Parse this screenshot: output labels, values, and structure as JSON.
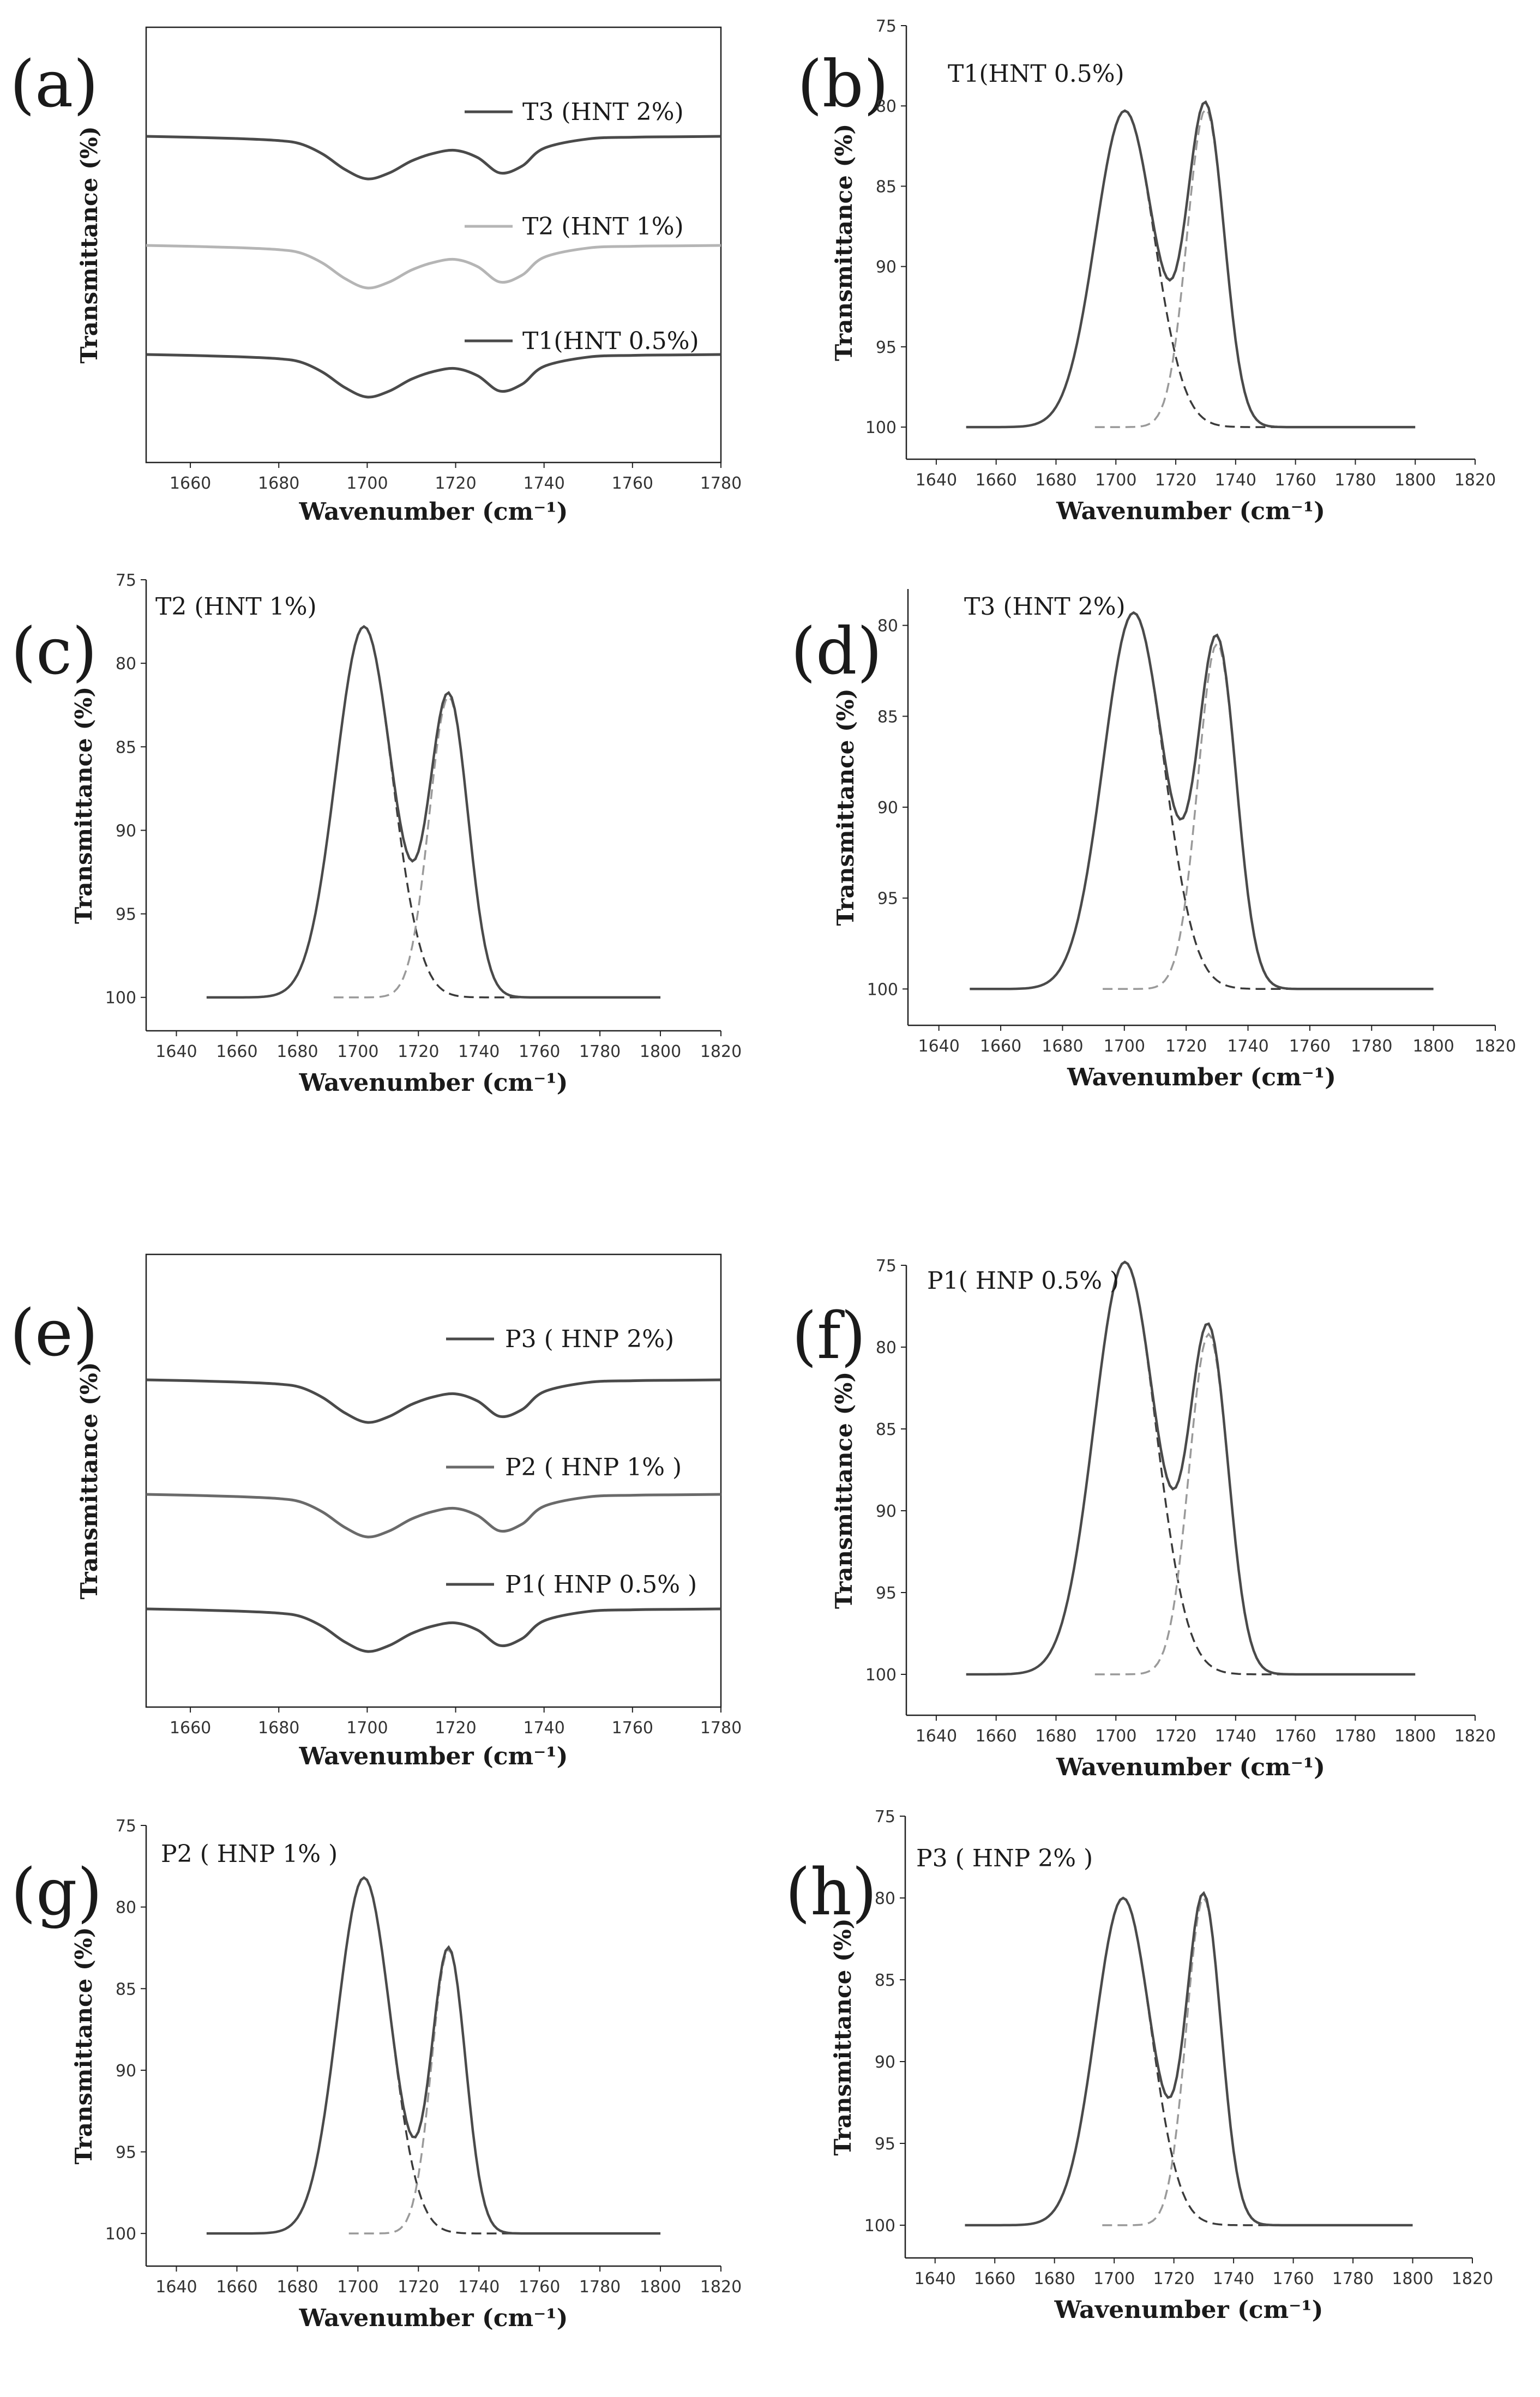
{
  "figure": {
    "colors": {
      "dark": "#4a4a4a",
      "medium": "#8a8a8a",
      "light": "#b5b5b5",
      "fit": "#3a3a3a",
      "background": "#ffffff"
    }
  },
  "chart_data": [
    {
      "panel": "(a)",
      "type": "line",
      "style": "stacked",
      "xlabel": "Wavenumber (cm⁻¹)",
      "ylabel": "Transmittance (%)",
      "xlim": [
        1650,
        1780
      ],
      "xticks": [
        "1660",
        "1680",
        "1700",
        "1720",
        "1740",
        "1760",
        "1780"
      ],
      "series": [
        {
          "name": "T3 (HNT 2%)",
          "color": "#4a4a4a",
          "offset": 0.2,
          "x": [
            1650,
            1660,
            1670,
            1680,
            1685,
            1690,
            1695,
            1700,
            1705,
            1710,
            1715,
            1720,
            1725,
            1730,
            1735,
            1740,
            1750,
            1760,
            1770,
            1780
          ],
          "y": [
            0.0,
            0.02,
            0.05,
            0.1,
            0.18,
            0.42,
            0.78,
            1.0,
            0.86,
            0.58,
            0.4,
            0.33,
            0.5,
            0.86,
            0.7,
            0.28,
            0.06,
            0.02,
            0.01,
            0.0
          ]
        },
        {
          "name": "T2 (HNT 1%)",
          "color": "#b5b5b5",
          "offset": 2.2,
          "x": [
            1650,
            1660,
            1670,
            1680,
            1685,
            1690,
            1695,
            1700,
            1705,
            1710,
            1715,
            1720,
            1725,
            1730,
            1735,
            1740,
            1750,
            1760,
            1770,
            1780
          ],
          "y": [
            0.0,
            0.02,
            0.05,
            0.1,
            0.18,
            0.42,
            0.78,
            1.0,
            0.86,
            0.58,
            0.4,
            0.33,
            0.5,
            0.86,
            0.7,
            0.28,
            0.06,
            0.02,
            0.01,
            0.0
          ]
        },
        {
          "name": "T1(HNT 0.5%)",
          "color": "#4a4a4a",
          "offset": 4.2,
          "x": [
            1650,
            1660,
            1670,
            1680,
            1685,
            1690,
            1695,
            1700,
            1705,
            1710,
            1715,
            1720,
            1725,
            1730,
            1735,
            1740,
            1750,
            1760,
            1770,
            1780
          ],
          "y": [
            0.0,
            0.02,
            0.05,
            0.1,
            0.18,
            0.42,
            0.78,
            1.0,
            0.86,
            0.58,
            0.4,
            0.33,
            0.5,
            0.86,
            0.7,
            0.28,
            0.06,
            0.02,
            0.01,
            0.0
          ]
        }
      ]
    },
    {
      "panel": "(b)",
      "type": "line",
      "style": "fit",
      "label": "T1(HNT 0.5%)",
      "xlabel": "Wavenumber (cm⁻¹)",
      "ylabel": "Transmittance (%)",
      "xlim": [
        1630,
        1820
      ],
      "ylim": [
        75,
        102
      ],
      "xticks": [
        "1640",
        "1660",
        "1680",
        "1700",
        "1720",
        "1740",
        "1760",
        "1780",
        "1800",
        "1820"
      ],
      "yticks": [
        "75",
        "80",
        "85",
        "90",
        "95",
        "100"
      ],
      "x_start": 1650,
      "x_end": 1800,
      "peaks": [
        {
          "center": 1703,
          "min_transmittance": 80.3,
          "width": 9.8,
          "color": "#3a3a3a"
        },
        {
          "center": 1730,
          "min_transmittance": 80.2,
          "width": 6.2,
          "color": "#9a9a9a"
        }
      ]
    },
    {
      "panel": "(c)",
      "type": "line",
      "style": "fit",
      "label": "T2 (HNT 1%)",
      "xlabel": "Wavenumber (cm⁻¹)",
      "ylabel": "Transmittance (%)",
      "xlim": [
        1630,
        1820
      ],
      "ylim": [
        75,
        102
      ],
      "xticks": [
        "1640",
        "1660",
        "1680",
        "1700",
        "1720",
        "1740",
        "1760",
        "1780",
        "1800",
        "1820"
      ],
      "yticks": [
        "75",
        "80",
        "85",
        "90",
        "95",
        "100"
      ],
      "x_start": 1650,
      "x_end": 1800,
      "peaks": [
        {
          "center": 1702,
          "min_transmittance": 77.8,
          "width": 9.3,
          "color": "#3a3a3a"
        },
        {
          "center": 1730,
          "min_transmittance": 82.0,
          "width": 6.4,
          "color": "#9a9a9a"
        }
      ]
    },
    {
      "panel": "(d)",
      "type": "line",
      "style": "fit",
      "label": "T3 (HNT 2%)",
      "xlabel": "Wavenumber (cm⁻¹)",
      "ylabel": "Transmittance (%)",
      "xlim": [
        1630,
        1820
      ],
      "ylim": [
        78,
        102
      ],
      "xticks": [
        "1640",
        "1660",
        "1680",
        "1700",
        "1720",
        "1740",
        "1760",
        "1780",
        "1800",
        "1820"
      ],
      "yticks": [
        "80",
        "85",
        "90",
        "95",
        "100"
      ],
      "x_start": 1650,
      "x_end": 1800,
      "peaks": [
        {
          "center": 1703,
          "min_transmittance": 79.3,
          "width": 9.8,
          "color": "#3a3a3a"
        },
        {
          "center": 1730,
          "min_transmittance": 81.0,
          "width": 6.2,
          "color": "#9a9a9a"
        }
      ]
    },
    {
      "panel": "(e)",
      "type": "line",
      "style": "stacked",
      "xlabel": "Wavenumber (cm⁻¹)",
      "ylabel": "Transmittance (%)",
      "xlim": [
        1650,
        1780
      ],
      "xticks": [
        "1660",
        "1680",
        "1700",
        "1720",
        "1740",
        "1760",
        "1780"
      ],
      "series": [
        {
          "name": "P3 ( HNP 2%)",
          "color": "#4a4a4a",
          "offset": 0.2,
          "x": [
            1650,
            1660,
            1670,
            1680,
            1685,
            1690,
            1695,
            1700,
            1705,
            1710,
            1715,
            1720,
            1725,
            1730,
            1735,
            1740,
            1750,
            1760,
            1770,
            1780
          ],
          "y": [
            0.0,
            0.02,
            0.05,
            0.1,
            0.18,
            0.42,
            0.78,
            1.0,
            0.86,
            0.58,
            0.4,
            0.33,
            0.5,
            0.86,
            0.7,
            0.28,
            0.06,
            0.02,
            0.01,
            0.0
          ]
        },
        {
          "name": "P2 ( HNP 1% )",
          "color": "#6a6a6a",
          "offset": 2.2,
          "x": [
            1650,
            1660,
            1670,
            1680,
            1685,
            1690,
            1695,
            1700,
            1705,
            1710,
            1715,
            1720,
            1725,
            1730,
            1735,
            1740,
            1750,
            1760,
            1770,
            1780
          ],
          "y": [
            0.0,
            0.02,
            0.05,
            0.1,
            0.18,
            0.42,
            0.78,
            1.0,
            0.86,
            0.58,
            0.4,
            0.33,
            0.5,
            0.86,
            0.7,
            0.28,
            0.06,
            0.02,
            0.01,
            0.0
          ]
        },
        {
          "name": "P1( HNP 0.5% )",
          "color": "#4a4a4a",
          "offset": 4.2,
          "x": [
            1650,
            1660,
            1670,
            1680,
            1685,
            1690,
            1695,
            1700,
            1705,
            1710,
            1715,
            1720,
            1725,
            1730,
            1735,
            1740,
            1750,
            1760,
            1770,
            1780
          ],
          "y": [
            0.0,
            0.02,
            0.05,
            0.1,
            0.18,
            0.42,
            0.78,
            1.0,
            0.86,
            0.58,
            0.4,
            0.33,
            0.5,
            0.86,
            0.7,
            0.28,
            0.06,
            0.02,
            0.01,
            0.0
          ]
        }
      ]
    },
    {
      "panel": "(f)",
      "type": "line",
      "style": "fit",
      "label": "P1( HNP 0.5% )",
      "xlabel": "Wavenumber (cm⁻¹)",
      "ylabel": "Transmittance (%)",
      "xlim": [
        1630,
        1820
      ],
      "ylim": [
        75,
        102.5
      ],
      "xticks": [
        "1640",
        "1660",
        "1680",
        "1700",
        "1720",
        "1740",
        "1760",
        "1780",
        "1800",
        "1820"
      ],
      "yticks": [
        "75",
        "80",
        "85",
        "90",
        "95",
        "100"
      ],
      "x_start": 1650,
      "x_end": 1800,
      "peaks": [
        {
          "center": 1703,
          "min_transmittance": 74.8,
          "width": 10.3,
          "color": "#3a3a3a"
        },
        {
          "center": 1731,
          "min_transmittance": 79.2,
          "width": 6.5,
          "color": "#9a9a9a"
        }
      ]
    },
    {
      "panel": "(g)",
      "type": "line",
      "style": "fit",
      "label": "P2 ( HNP 1% )",
      "xlabel": "Wavenumber (cm⁻¹)",
      "ylabel": "Transmittance (%)",
      "xlim": [
        1630,
        1820
      ],
      "ylim": [
        75,
        102
      ],
      "xticks": [
        "1640",
        "1660",
        "1680",
        "1700",
        "1720",
        "1740",
        "1760",
        "1780",
        "1800",
        "1820"
      ],
      "yticks": [
        "75",
        "80",
        "85",
        "90",
        "95",
        "100"
      ],
      "x_start": 1650,
      "x_end": 1800,
      "peaks": [
        {
          "center": 1702,
          "min_transmittance": 78.2,
          "width": 8.8,
          "color": "#3a3a3a"
        },
        {
          "center": 1730,
          "min_transmittance": 82.6,
          "width": 5.6,
          "color": "#9a9a9a"
        }
      ]
    },
    {
      "panel": "(h)",
      "type": "line",
      "style": "fit",
      "label": "P3 ( HNP 2% )",
      "xlabel": "Wavenumber (cm⁻¹)",
      "ylabel": "Transmittance (%)",
      "xlim": [
        1630,
        1820
      ],
      "ylim": [
        75,
        102
      ],
      "xticks": [
        "1640",
        "1660",
        "1680",
        "1700",
        "1720",
        "1740",
        "1760",
        "1780",
        "1800",
        "1820"
      ],
      "yticks": [
        "75",
        "80",
        "85",
        "90",
        "95",
        "100"
      ],
      "x_start": 1650,
      "x_end": 1800,
      "peaks": [
        {
          "center": 1703,
          "min_transmittance": 80.0,
          "width": 9.3,
          "color": "#3a3a3a"
        },
        {
          "center": 1730,
          "min_transmittance": 80.0,
          "width": 5.8,
          "color": "#9a9a9a"
        }
      ]
    }
  ]
}
